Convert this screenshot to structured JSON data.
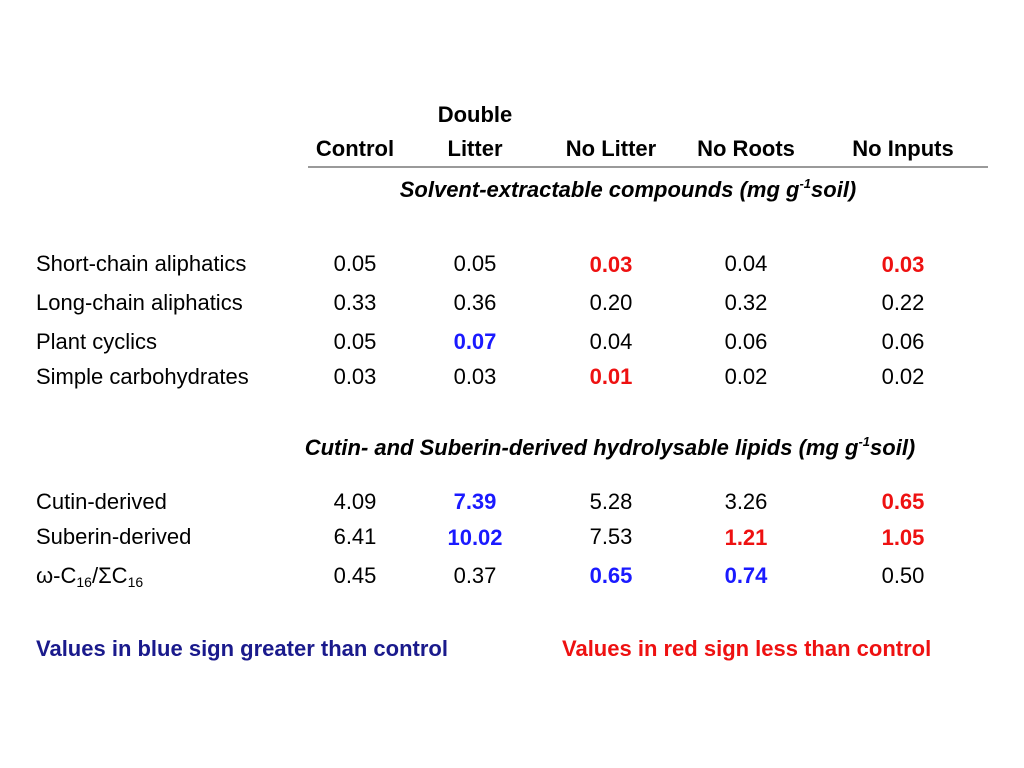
{
  "columns": [
    "Control",
    "Litter",
    "No Litter",
    "No Roots",
    "No Inputs"
  ],
  "column2_prefix": "Double",
  "section1": {
    "title_start": "Solvent-extractable compounds (mg g",
    "superscript": "-1",
    "title_end": "soil)"
  },
  "section2": {
    "title_start": "Cutin- and Suberin-derived hydrolysable lipids (mg g",
    "superscript": "-1",
    "title_end": "soil)"
  },
  "rows": {
    "short_chain": {
      "label": "Short-chain aliphatics",
      "values": [
        "0.05",
        "0.05",
        "0.03",
        "0.04",
        "0.03"
      ]
    },
    "long_chain": {
      "label": "Long-chain aliphatics",
      "values": [
        "0.33",
        "0.36",
        "0.20",
        "0.32",
        "0.22"
      ]
    },
    "plant_cyclics": {
      "label": "Plant cyclics",
      "values": [
        "0.05",
        "0.07",
        "0.04",
        "0.06",
        "0.06"
      ]
    },
    "simple_carbs": {
      "label": "Simple carbohydrates",
      "values": [
        "0.03",
        "0.03",
        "0.01",
        "0.02",
        "0.02"
      ]
    },
    "cutin": {
      "label": "Cutin-derived",
      "values": [
        "4.09",
        "7.39",
        "5.28",
        "3.26",
        "0.65"
      ]
    },
    "suberin": {
      "label": "Suberin-derived",
      "values": [
        "6.41",
        "10.02",
        "7.53",
        "1.21",
        "1.05"
      ]
    },
    "ratio": {
      "label_a": "ω-C",
      "label_sub_a": "16",
      "label_b": "/ΣC",
      "label_sub_b": "16",
      "values": [
        "0.45",
        "0.37",
        "0.65",
        "0.74",
        "0.50"
      ]
    }
  },
  "legend": {
    "blue_text": "Values in blue sign greater than control",
    "red_text": "Values in red sign less than control"
  },
  "colors": {
    "blue": "#1a1aff",
    "red": "#ee1111",
    "legend_blue": "#1a1a8c",
    "rule": "#9a9a9a"
  }
}
